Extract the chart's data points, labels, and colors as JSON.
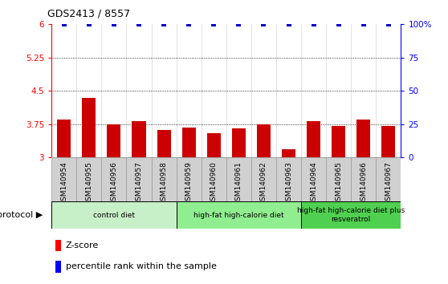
{
  "title": "GDS2413 / 8557",
  "samples": [
    "GSM140954",
    "GSM140955",
    "GSM140956",
    "GSM140957",
    "GSM140958",
    "GSM140959",
    "GSM140960",
    "GSM140961",
    "GSM140962",
    "GSM140963",
    "GSM140964",
    "GSM140965",
    "GSM140966",
    "GSM140967"
  ],
  "zscore": [
    3.85,
    4.35,
    3.75,
    3.82,
    3.62,
    3.68,
    3.55,
    3.65,
    3.75,
    3.18,
    3.82,
    3.72,
    3.85,
    3.72
  ],
  "percentile": [
    100,
    100,
    100,
    100,
    100,
    100,
    100,
    100,
    100,
    100,
    100,
    100,
    100,
    100
  ],
  "bar_color": "#cc0000",
  "dot_color": "#0000cc",
  "ylim_left": [
    3.0,
    6.0
  ],
  "ylim_right": [
    0,
    100
  ],
  "yticks_left": [
    3.0,
    3.75,
    4.5,
    5.25,
    6.0
  ],
  "yticks_right": [
    0,
    25,
    50,
    75,
    100
  ],
  "ytick_labels_left": [
    "3",
    "3.75",
    "4.5",
    "5.25",
    "6"
  ],
  "ytick_labels_right": [
    "0",
    "25",
    "50",
    "75",
    "100%"
  ],
  "hlines": [
    3.75,
    4.5,
    5.25
  ],
  "groups": [
    {
      "label": "control diet",
      "start": 0,
      "end": 4,
      "color": "#c8f0c8"
    },
    {
      "label": "high-fat high-calorie diet",
      "start": 5,
      "end": 9,
      "color": "#90ee90"
    },
    {
      "label": "high-fat high-calorie diet plus\nresveratrol",
      "start": 10,
      "end": 13,
      "color": "#50d050"
    }
  ],
  "protocol_label": "protocol",
  "legend_zscore": "Z-score",
  "legend_percentile": "percentile rank within the sample",
  "tick_bg_color": "#d0d0d0",
  "tick_border_color": "#999999"
}
